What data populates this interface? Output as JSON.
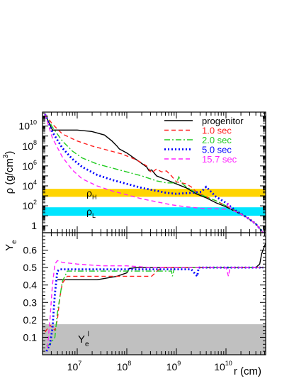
{
  "chart_data": [
    {
      "panel": "top",
      "type": "line",
      "ylabel": "ρ (g/cm³)",
      "ylabel_parts": {
        "sym": "ρ",
        "unit": "(g/cm",
        "exp": "3",
        "close": ")"
      },
      "x_scale": "log",
      "y_scale": "log",
      "xlim_log10": [
        6.3,
        10.8
      ],
      "ylim_log10": [
        -0.7,
        11.4
      ],
      "yticks": [
        {
          "v": 0,
          "m": "1",
          "e": ""
        },
        {
          "v": 2,
          "m": "10",
          "e": "2"
        },
        {
          "v": 4,
          "m": "10",
          "e": "4"
        },
        {
          "v": 6,
          "m": "10",
          "e": "6"
        },
        {
          "v": 8,
          "m": "10",
          "e": "8"
        },
        {
          "v": 10,
          "m": "10",
          "e": "10"
        }
      ],
      "bands": [
        {
          "name": "ρ_H",
          "sym": "ρ",
          "sub": "H",
          "range_log10": [
            2.9,
            3.7
          ],
          "color": "#ffd400"
        },
        {
          "name": "ρ_L",
          "sym": "ρ",
          "sub": "L",
          "range_log10": [
            1.0,
            1.85
          ],
          "color": "#00e5ff"
        }
      ],
      "legend_position": "top-right",
      "series": [
        {
          "name": "progenitor",
          "color": "#000000",
          "dash": "solid",
          "x_log10": [
            6.35,
            6.5,
            6.7,
            7.0,
            7.3,
            7.55,
            7.7,
            7.8,
            7.85,
            8.0,
            8.2,
            8.4,
            8.45,
            8.5,
            8.6,
            8.8,
            9.0,
            9.2,
            9.4,
            9.6,
            9.8,
            10.0,
            10.2,
            10.4,
            10.6,
            10.75
          ],
          "y_log10": [
            11.2,
            9.6,
            9.6,
            9.6,
            9.45,
            9.1,
            8.5,
            8.0,
            7.7,
            7.3,
            6.6,
            5.9,
            5.5,
            5.6,
            5.0,
            4.6,
            4.2,
            3.8,
            3.2,
            2.8,
            2.3,
            1.9,
            1.4,
            0.9,
            0.2,
            -0.7
          ]
        },
        {
          "name": "1.0 sec",
          "color": "#ff2020",
          "dash": "6,4",
          "x_log10": [
            6.35,
            6.5,
            6.7,
            7.0,
            7.3,
            7.6,
            7.9,
            8.2,
            8.4,
            8.5,
            8.6,
            8.7,
            8.8,
            8.9,
            9.0,
            9.2,
            9.3,
            9.4,
            9.6,
            9.8,
            10.0,
            10.2,
            10.4,
            10.6,
            10.75
          ],
          "y_log10": [
            11.2,
            10.2,
            9.2,
            8.5,
            8.0,
            7.6,
            7.2,
            6.6,
            6.0,
            5.3,
            5.7,
            5.4,
            5.5,
            5.0,
            4.4,
            4.2,
            3.9,
            3.4,
            2.9,
            2.5,
            2.0,
            1.5,
            0.9,
            0.2,
            -0.7
          ]
        },
        {
          "name": "2.0 sec",
          "color": "#22cc22",
          "dash": "8,3,2,3",
          "x_log10": [
            6.35,
            6.5,
            6.7,
            6.9,
            7.1,
            7.4,
            7.7,
            8.0,
            8.3,
            8.6,
            8.8,
            9.0,
            9.05,
            9.1,
            9.2,
            9.3,
            9.4,
            9.6,
            9.8,
            10.0,
            10.2,
            10.4,
            10.6,
            10.75
          ],
          "y_log10": [
            11.2,
            9.9,
            8.5,
            7.5,
            6.8,
            6.2,
            5.8,
            5.4,
            5.0,
            4.5,
            4.3,
            4.3,
            4.9,
            4.3,
            3.9,
            3.6,
            3.3,
            2.9,
            2.5,
            2.0,
            1.5,
            0.9,
            0.2,
            -0.7
          ]
        },
        {
          "name": "5.0 sec",
          "color": "#0000ff",
          "dash": "2,3",
          "x_log10": [
            6.35,
            6.5,
            6.7,
            6.9,
            7.1,
            7.4,
            7.7,
            8.0,
            8.3,
            8.6,
            8.8,
            9.0,
            9.3,
            9.5,
            9.6,
            9.7,
            9.8,
            9.9,
            10.0,
            10.2,
            10.4,
            10.6,
            10.75
          ],
          "y_log10": [
            11.2,
            9.4,
            7.8,
            6.7,
            5.9,
            5.1,
            4.6,
            4.2,
            3.8,
            3.5,
            3.3,
            3.2,
            3.3,
            3.4,
            3.9,
            3.4,
            2.9,
            2.6,
            2.3,
            1.5,
            0.9,
            0.2,
            -0.7
          ]
        },
        {
          "name": "15.7 sec",
          "color": "#ff22ff",
          "dash": "6,4",
          "x_log10": [
            6.35,
            6.5,
            6.7,
            6.9,
            7.1,
            7.4,
            7.7,
            8.0,
            8.3,
            8.6,
            8.9,
            9.2,
            9.5,
            9.8,
            10.0,
            10.05,
            10.1,
            10.2,
            10.4,
            10.6,
            10.75
          ],
          "y_log10": [
            11.2,
            8.8,
            6.9,
            5.6,
            4.7,
            4.0,
            3.5,
            3.1,
            2.7,
            2.4,
            2.1,
            1.9,
            1.75,
            1.7,
            1.65,
            2.3,
            1.6,
            1.4,
            0.9,
            0.2,
            -0.7
          ]
        }
      ]
    },
    {
      "panel": "bottom",
      "type": "line",
      "ylabel": "Y_e",
      "ylabel_parts": {
        "main": "Y",
        "sub": "e"
      },
      "xlabel": "r (cm)",
      "x_scale": "log",
      "xlim_log10": [
        6.3,
        10.8
      ],
      "ylim": [
        0,
        0.7
      ],
      "yticks": [
        0.1,
        0.2,
        0.3,
        0.4,
        0.5,
        0.6
      ],
      "xticks": [
        {
          "v": 7,
          "m": "10",
          "e": "7"
        },
        {
          "v": 8,
          "m": "10",
          "e": "8"
        },
        {
          "v": 9,
          "m": "10",
          "e": "9"
        },
        {
          "v": 10,
          "m": "10",
          "e": "10"
        }
      ],
      "bands": [
        {
          "name": "Y_e^l",
          "main": "Y",
          "sub": "e",
          "sup": "l",
          "range": [
            0,
            0.175
          ],
          "color": "#c0c0c0"
        }
      ],
      "series": [
        {
          "name": "progenitor",
          "color": "#000000",
          "dash": "solid",
          "x_log10": [
            6.6,
            6.65,
            7.0,
            7.4,
            7.8,
            8.0,
            8.05,
            8.2,
            8.6,
            9.0,
            9.4,
            9.8,
            10.2,
            10.6,
            10.68,
            10.72,
            10.8
          ],
          "y_log10_dummy": null,
          "y": [
            0.43,
            0.43,
            0.43,
            0.43,
            0.45,
            0.47,
            0.495,
            0.5,
            0.5,
            0.5,
            0.5,
            0.5,
            0.5,
            0.5,
            0.52,
            0.58,
            0.64
          ]
        },
        {
          "name": "1.0 sec",
          "color": "#ff2020",
          "dash": "6,4",
          "x_log10": [
            6.35,
            6.45,
            6.55,
            6.6,
            6.65,
            6.7,
            6.8,
            7.0,
            7.5,
            8.0,
            8.5,
            8.65,
            8.7,
            8.8,
            9.2,
            9.6,
            10.0,
            10.4,
            10.7
          ],
          "y": [
            0.13,
            0.17,
            0.14,
            0.2,
            0.33,
            0.41,
            0.45,
            0.45,
            0.45,
            0.45,
            0.45,
            0.49,
            0.5,
            0.5,
            0.5,
            0.5,
            0.5,
            0.5,
            0.5
          ]
        },
        {
          "name": "2.0 sec",
          "color": "#22cc22",
          "dash": "8,3,2,3",
          "x_log10": [
            6.38,
            6.45,
            6.55,
            6.6,
            6.7,
            6.8,
            6.85,
            7.0,
            7.5,
            8.0,
            8.5,
            8.9,
            8.92,
            8.96,
            9.0,
            9.4,
            9.8,
            10.2,
            10.6,
            10.75
          ],
          "y": [
            0.05,
            0.06,
            0.1,
            0.24,
            0.42,
            0.48,
            0.48,
            0.48,
            0.48,
            0.48,
            0.48,
            0.48,
            0.45,
            0.5,
            0.5,
            0.5,
            0.5,
            0.5,
            0.5,
            0.5
          ]
        },
        {
          "name": "5.0 sec",
          "color": "#0000ff",
          "dash": "2,3",
          "x_log10": [
            6.38,
            6.45,
            6.5,
            6.55,
            6.6,
            6.65,
            6.7,
            7.0,
            7.5,
            8.0,
            8.5,
            9.0,
            9.3,
            9.42,
            9.45,
            9.5,
            9.8,
            10.2,
            10.6,
            10.75
          ],
          "y": [
            0.02,
            0.06,
            0.15,
            0.35,
            0.48,
            0.49,
            0.49,
            0.49,
            0.49,
            0.49,
            0.49,
            0.49,
            0.49,
            0.45,
            0.5,
            0.5,
            0.5,
            0.5,
            0.5,
            0.5
          ]
        },
        {
          "name": "15.7 sec",
          "color": "#ff22ff",
          "dash": "6,4",
          "x_log10": [
            6.4,
            6.45,
            6.5,
            6.55,
            6.6,
            6.7,
            7.0,
            7.5,
            8.0,
            8.5,
            9.0,
            9.5,
            10.0,
            10.05,
            10.08,
            10.12,
            10.4,
            10.6,
            10.75
          ],
          "y": [
            0.04,
            0.2,
            0.4,
            0.52,
            0.54,
            0.53,
            0.52,
            0.51,
            0.51,
            0.5,
            0.5,
            0.5,
            0.5,
            0.45,
            0.5,
            0.5,
            0.5,
            0.5,
            0.5
          ]
        }
      ]
    }
  ]
}
